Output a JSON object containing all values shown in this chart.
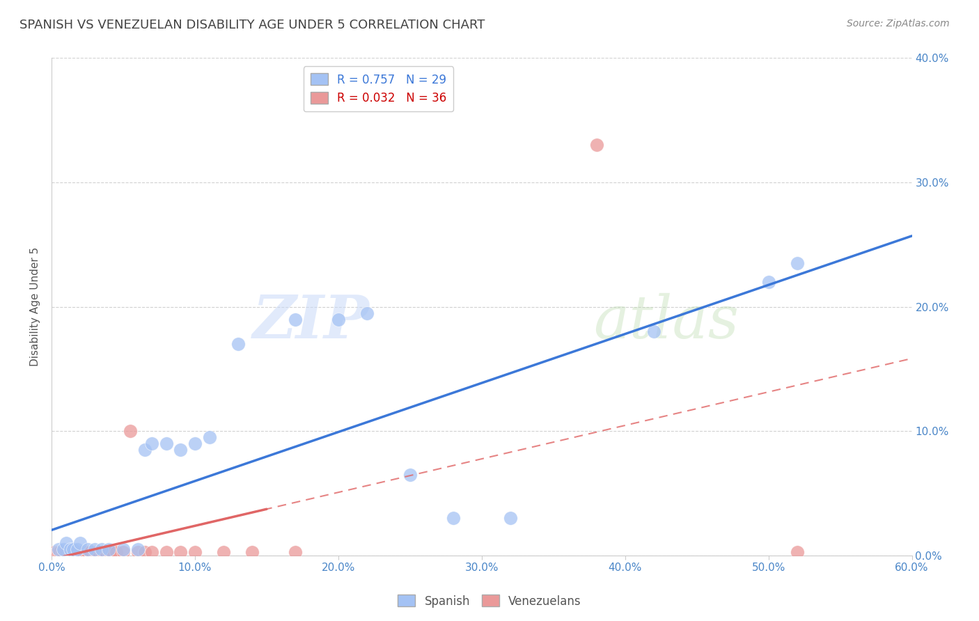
{
  "title": "SPANISH VS VENEZUELAN DISABILITY AGE UNDER 5 CORRELATION CHART",
  "source": "Source: ZipAtlas.com",
  "ylabel": "Disability Age Under 5",
  "xlim": [
    0.0,
    0.6
  ],
  "ylim": [
    0.0,
    0.4
  ],
  "xticks": [
    0.0,
    0.1,
    0.2,
    0.3,
    0.4,
    0.5,
    0.6
  ],
  "yticks": [
    0.0,
    0.1,
    0.2,
    0.3,
    0.4
  ],
  "xtick_labels": [
    "0.0%",
    "10.0%",
    "20.0%",
    "30.0%",
    "40.0%",
    "50.0%",
    "60.0%"
  ],
  "ytick_labels_right": [
    "0.0%",
    "10.0%",
    "20.0%",
    "30.0%",
    "40.0%"
  ],
  "spanish_color": "#a4c2f4",
  "venezuelan_color": "#ea9999",
  "spanish_line_color": "#3c78d8",
  "venezuelan_solid_line_color": "#e06666",
  "venezuelan_dashed_line_color": "#e06666",
  "spanish_R": 0.757,
  "spanish_N": 29,
  "venezuelan_R": 0.032,
  "venezuelan_N": 36,
  "legend_label_spanish": "Spanish",
  "legend_label_venezuelan": "Venezuelans",
  "watermark_zip": "ZIP",
  "watermark_atlas": "atlas",
  "background_color": "#ffffff",
  "grid_color": "#cccccc",
  "title_color": "#434343",
  "axis_label_color": "#4a86c8",
  "legend_text_color_blue": "#3c78d8",
  "legend_text_color_pink": "#cc0000",
  "spanish_scatter_x": [
    0.005,
    0.008,
    0.01,
    0.013,
    0.015,
    0.018,
    0.02,
    0.025,
    0.03,
    0.035,
    0.04,
    0.05,
    0.06,
    0.065,
    0.07,
    0.08,
    0.09,
    0.1,
    0.11,
    0.13,
    0.17,
    0.2,
    0.22,
    0.25,
    0.28,
    0.32,
    0.42,
    0.5,
    0.52
  ],
  "spanish_scatter_y": [
    0.005,
    0.005,
    0.01,
    0.005,
    0.005,
    0.005,
    0.01,
    0.005,
    0.005,
    0.005,
    0.005,
    0.005,
    0.005,
    0.085,
    0.09,
    0.09,
    0.085,
    0.09,
    0.095,
    0.17,
    0.19,
    0.19,
    0.195,
    0.065,
    0.03,
    0.03,
    0.18,
    0.22,
    0.235
  ],
  "venezuelan_scatter_x": [
    0.002,
    0.004,
    0.005,
    0.006,
    0.007,
    0.008,
    0.01,
    0.012,
    0.013,
    0.015,
    0.016,
    0.018,
    0.02,
    0.022,
    0.025,
    0.027,
    0.03,
    0.032,
    0.035,
    0.038,
    0.04,
    0.042,
    0.045,
    0.05,
    0.055,
    0.06,
    0.065,
    0.07,
    0.08,
    0.09,
    0.1,
    0.12,
    0.14,
    0.17,
    0.38,
    0.52
  ],
  "venezuelan_scatter_y": [
    0.003,
    0.003,
    0.003,
    0.003,
    0.003,
    0.003,
    0.003,
    0.003,
    0.003,
    0.003,
    0.003,
    0.003,
    0.003,
    0.003,
    0.003,
    0.003,
    0.003,
    0.003,
    0.003,
    0.003,
    0.003,
    0.003,
    0.003,
    0.003,
    0.1,
    0.003,
    0.003,
    0.003,
    0.003,
    0.003,
    0.003,
    0.003,
    0.003,
    0.003,
    0.33,
    0.003
  ]
}
